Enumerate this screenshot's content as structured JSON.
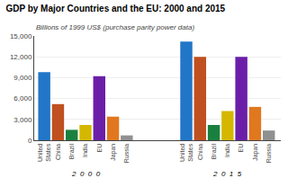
{
  "chart_data": {
    "type": "bar",
    "title": "GDP by Major Countries and the EU: 2000 and 2015",
    "subtitle": "Billions of 1999 US$ (purchase parity power data)",
    "categories": [
      "United\nStates",
      "China",
      "Brazil",
      "India",
      "EU",
      "Japan",
      "Russia"
    ],
    "series": [
      {
        "name": "2  0  0  0",
        "values": [
          9800,
          5200,
          1500,
          2200,
          9200,
          3400,
          700
        ],
        "colors": [
          "#2176C7",
          "#C05020",
          "#1A8040",
          "#D4B800",
          "#6B1FA8",
          "#E07820",
          "#909090"
        ]
      },
      {
        "name": "2  0  1  5",
        "values": [
          14200,
          12000,
          2200,
          4200,
          12000,
          4800,
          1400
        ],
        "colors": [
          "#2176C7",
          "#C05020",
          "#1A8040",
          "#D4B800",
          "#6B1FA8",
          "#E07820",
          "#909090"
        ]
      }
    ],
    "ylim": [
      0,
      15000
    ],
    "yticks": [
      0,
      {
        "value": 3000,
        "label": "3,000"
      },
      {
        "value": 6000,
        "label": "6,000"
      },
      {
        "value": 9000,
        "label": "9,000"
      },
      {
        "value": 12000,
        "label": "12,000"
      },
      {
        "value": 15000,
        "label": "15,000"
      }
    ],
    "grid": true
  }
}
